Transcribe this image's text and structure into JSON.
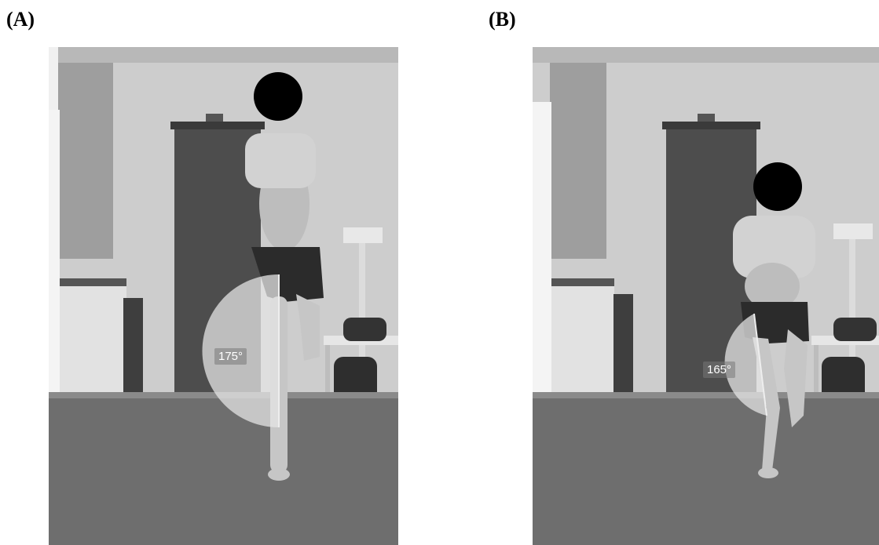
{
  "panels": [
    {
      "label": "(A)",
      "angle_label": "175°",
      "angle_degrees": 175
    },
    {
      "label": "(B)",
      "angle_label": "165°",
      "angle_degrees": 165
    }
  ],
  "colors": {
    "background": "#ffffff",
    "wall": "#c9c9c9",
    "floor": "#6f6f6f",
    "door": "#4a4a4a",
    "angle_overlay": "#d8d8d8",
    "face_mask": "#000000"
  }
}
